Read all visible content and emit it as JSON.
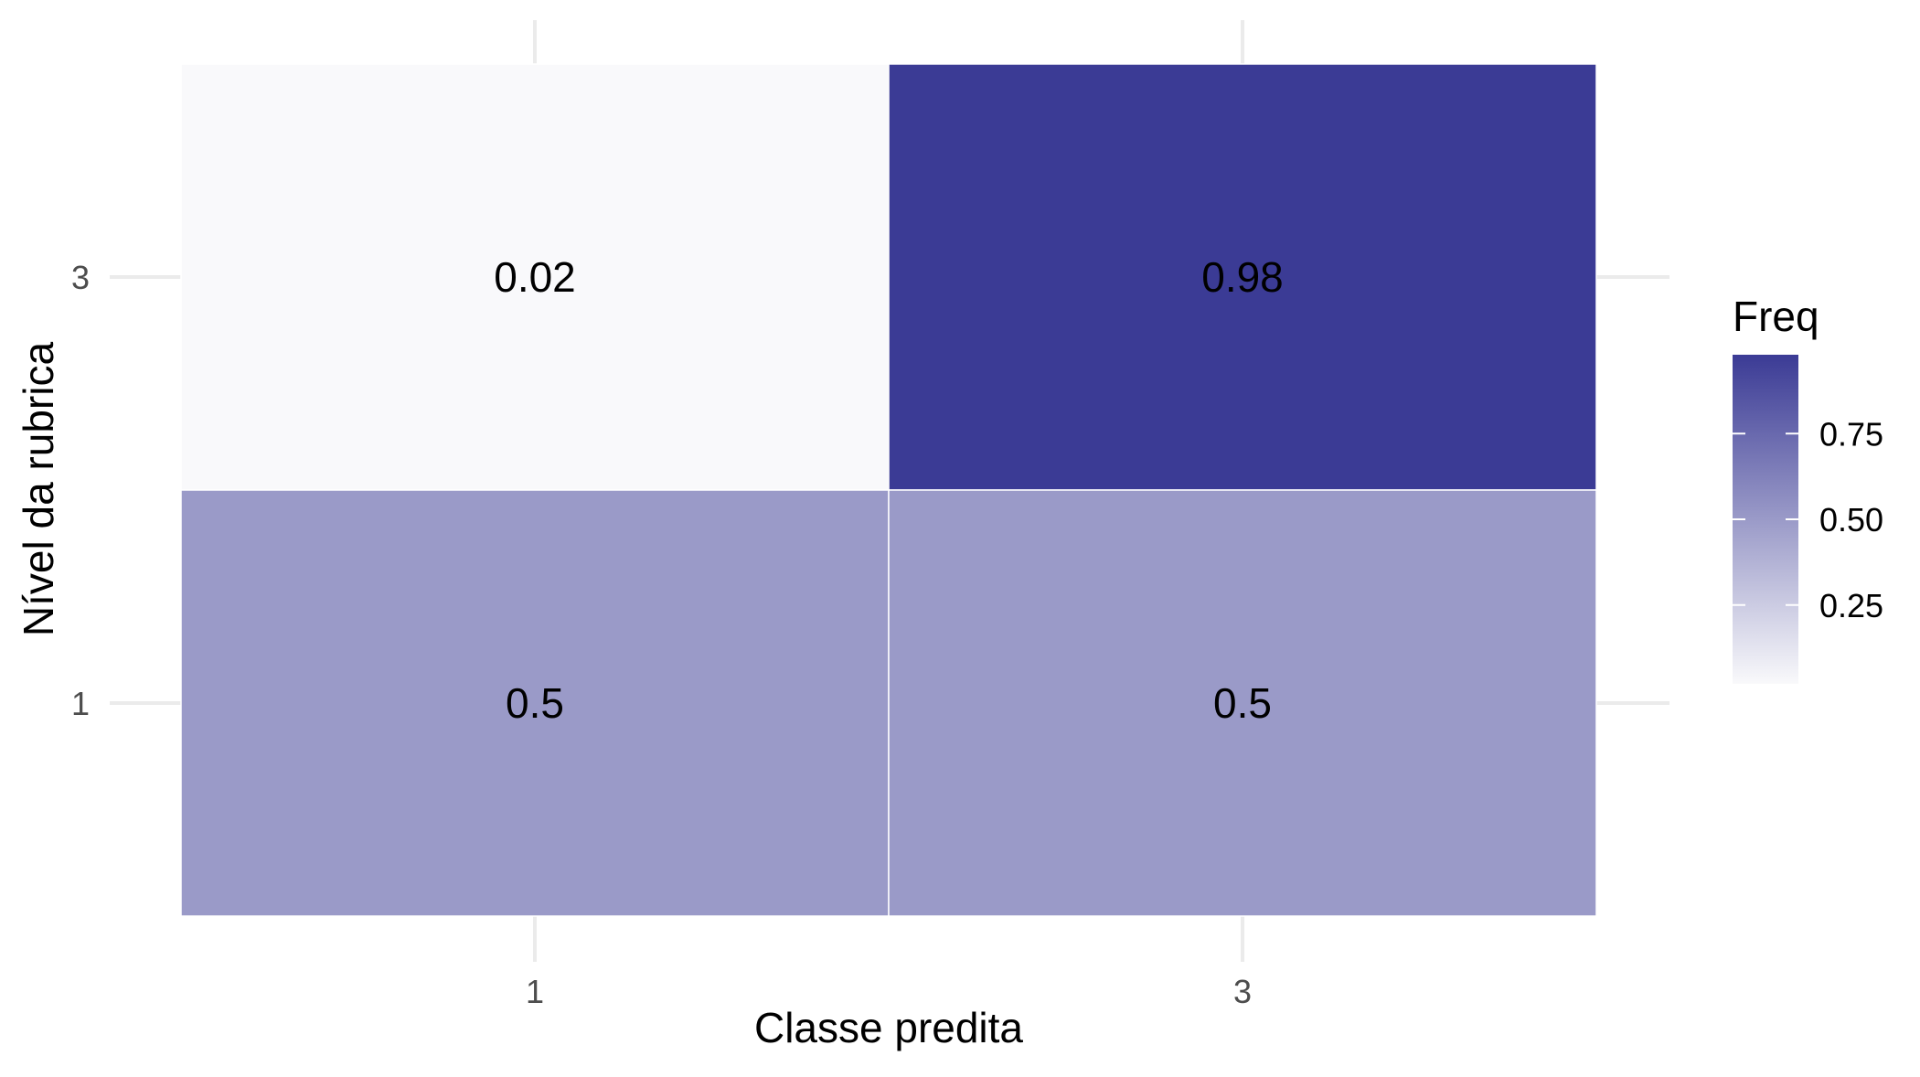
{
  "chart_data": {
    "type": "heatmap",
    "xlabel": "Classe predita",
    "ylabel": "Nível da rubrica",
    "x_categories": [
      "1",
      "3"
    ],
    "y_categories": [
      "1",
      "3"
    ],
    "cells": [
      {
        "x": "1",
        "y": "3",
        "value": 0.02,
        "label": "0.02"
      },
      {
        "x": "3",
        "y": "3",
        "value": 0.98,
        "label": "0.98"
      },
      {
        "x": "1",
        "y": "1",
        "value": 0.5,
        "label": "0.5"
      },
      {
        "x": "3",
        "y": "1",
        "value": 0.5,
        "label": "0.5"
      }
    ],
    "legend": {
      "title": "Freq",
      "ticks": [
        {
          "value": 0.25,
          "label": "0.25"
        },
        {
          "value": 0.5,
          "label": "0.50"
        },
        {
          "value": 0.75,
          "label": "0.75"
        }
      ],
      "range": [
        0.02,
        0.98
      ],
      "low_color": "#f9f9fb",
      "high_color": "#3b3b95"
    },
    "grid": true
  }
}
